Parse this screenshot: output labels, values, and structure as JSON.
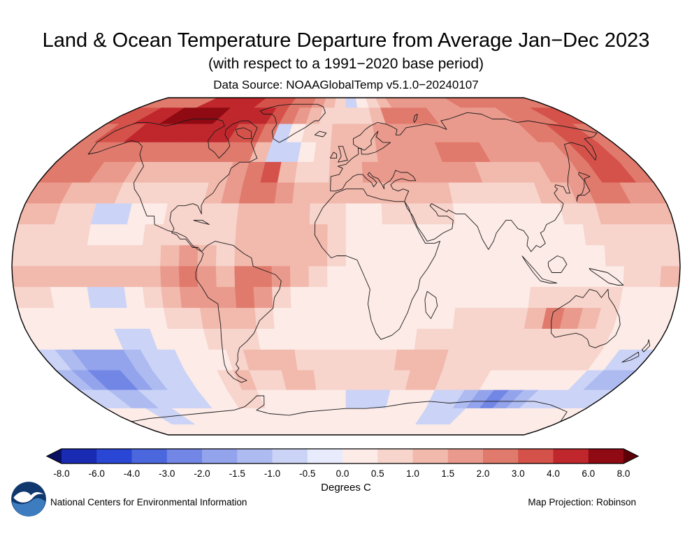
{
  "header": {
    "title": "Land & Ocean Temperature Departure from Average Jan−Dec 2023",
    "subtitle": "(with respect to a 1991−2020 base period)",
    "source": "Data Source: NOAAGlobalTemp v5.1.0−20240107"
  },
  "footer": {
    "org": "National Centers for Environmental Information",
    "projection": "Map Projection: Robinson",
    "logo": "noaa-logo"
  },
  "chart_data": {
    "type": "heatmap",
    "title": "Land & Ocean Temperature Departure from Average Jan−Dec 2023",
    "subtitle": "(with respect to a 1991−2020 base period)",
    "data_source": "NOAAGlobalTemp v5.1.0−20240107",
    "projection": "Robinson",
    "units": "Degrees C",
    "colorbar": {
      "label": "Degrees C",
      "ticks": [
        "-8.0",
        "-6.0",
        "-4.0",
        "-3.0",
        "-2.0",
        "-1.5",
        "-1.0",
        "-0.5",
        "0.0",
        "0.5",
        "1.0",
        "1.5",
        "2.0",
        "3.0",
        "4.0",
        "6.0",
        "8.0"
      ],
      "colors": [
        "#0a0f64",
        "#1a2bb3",
        "#2a46d4",
        "#4b67de",
        "#7286e6",
        "#93a3ec",
        "#aebbf1",
        "#cbd3f6",
        "#e8ebfb",
        "#fcebe7",
        "#f7d4cc",
        "#f2b9ad",
        "#ea9a8d",
        "#e07a6d",
        "#d5524a",
        "#c0272d",
        "#8f0a12",
        "#5f0008"
      ]
    },
    "grid": {
      "description": "Temperature anomaly (deg C) on a 10x10 degree grid, rows from 90N to 90S, columns from 180W to 180E",
      "lat_step": 10,
      "lon_step": 10,
      "lat_start": 90,
      "lon_start": -180,
      "anomaly": [
        [
          2.5,
          2.5,
          3,
          3,
          3,
          5,
          5,
          5,
          5,
          5,
          4,
          4,
          3.5,
          3,
          2.5,
          2,
          1.5,
          1,
          -0.5,
          0.5,
          1,
          1.5,
          2,
          2,
          2,
          2,
          2,
          2,
          2.5,
          2.5,
          2.5,
          2.5,
          2.5,
          2.5,
          2.5,
          2.5
        ],
        [
          3.5,
          4,
          4.5,
          5,
          6.5,
          6.5,
          6.5,
          6.5,
          5,
          5,
          5,
          4.5,
          3.5,
          2.5,
          2,
          1.5,
          1,
          1,
          1,
          1,
          1.5,
          2.5,
          2.5,
          2.5,
          2.5,
          2,
          2,
          2,
          2,
          2,
          2,
          2.5,
          3,
          3,
          3.5,
          3.5
        ],
        [
          3,
          3.5,
          4,
          4.5,
          5,
          5,
          5,
          5,
          4.5,
          4.5,
          4,
          4,
          2.5,
          -0.5,
          0.5,
          1,
          1,
          1.5,
          1.5,
          1.5,
          2,
          2,
          2,
          2,
          2,
          2,
          2,
          2,
          2,
          2,
          2,
          2.5,
          3,
          3.5,
          3.5,
          3
        ],
        [
          2.5,
          3,
          3,
          3,
          3,
          2.5,
          2.5,
          2.5,
          3,
          3,
          3,
          3,
          1.5,
          -0.5,
          -0.5,
          0.5,
          1,
          1.5,
          1.5,
          1.5,
          2,
          2,
          2,
          2,
          2.5,
          2.5,
          2.5,
          2,
          2,
          2,
          2,
          2,
          2.5,
          3.5,
          3.5,
          3
        ],
        [
          2.5,
          2.5,
          2.5,
          2,
          2,
          1.5,
          1.5,
          1.5,
          1.5,
          1.5,
          1.5,
          2,
          3,
          3.5,
          1.5,
          1,
          1,
          1.5,
          1.5,
          2,
          2,
          2,
          2,
          2,
          2,
          2,
          1.5,
          1.5,
          1.5,
          1.5,
          2,
          2,
          2.5,
          3.5,
          3.5,
          3
        ],
        [
          2,
          2,
          1.5,
          1.5,
          1.5,
          1,
          1,
          1,
          1,
          1,
          1.5,
          2,
          3,
          3,
          2,
          1.5,
          1.5,
          1.5,
          1.5,
          1.5,
          1.5,
          1.5,
          1.5,
          1.5,
          1,
          1,
          1,
          1,
          1,
          1.5,
          1.5,
          2,
          2.5,
          2.5,
          2,
          2
        ],
        [
          1.5,
          1.5,
          1,
          1,
          -0.5,
          -0.5,
          0.5,
          0.5,
          1,
          1,
          1,
          1,
          1.5,
          1.5,
          1.5,
          1.5,
          1,
          1,
          0.5,
          0.5,
          1,
          1,
          1,
          1,
          0.5,
          0.5,
          0.5,
          0.5,
          0.5,
          0.5,
          1,
          1,
          1.5,
          1.5,
          1.5,
          1.5
        ],
        [
          1,
          1,
          1,
          1,
          0.5,
          0.5,
          0.5,
          1,
          1,
          1,
          1,
          1,
          1.5,
          1.5,
          1.5,
          1.5,
          1.5,
          1,
          0.5,
          0.5,
          0.5,
          0.5,
          0.5,
          0.5,
          0.5,
          0.5,
          0.5,
          0.5,
          0.5,
          0.5,
          0.5,
          1,
          1,
          1,
          1,
          1
        ],
        [
          1,
          1,
          1,
          1,
          1,
          1,
          1,
          1,
          1.5,
          2,
          1.5,
          1,
          1.5,
          1.5,
          1.5,
          1.5,
          1.5,
          1,
          0.5,
          0.5,
          0.5,
          0.5,
          0.5,
          0.5,
          0.5,
          0.5,
          0.5,
          0.5,
          0.5,
          0.5,
          0.5,
          0.5,
          1,
          1,
          1,
          1
        ],
        [
          1.5,
          1.5,
          1.5,
          1.5,
          1.5,
          1.5,
          1.5,
          1.5,
          2,
          2.5,
          2,
          1.5,
          2.5,
          2.5,
          2,
          1.5,
          1,
          0.5,
          0.5,
          0.5,
          0.5,
          0.5,
          0.5,
          0.5,
          0.5,
          0.5,
          0.5,
          0.5,
          0.5,
          0.5,
          0.5,
          0.5,
          0.5,
          1,
          1,
          1.5
        ],
        [
          1,
          1,
          0.5,
          0.5,
          -0.5,
          -0.5,
          0.5,
          1,
          1.5,
          2,
          2,
          2,
          2.5,
          2,
          1,
          0.5,
          0.5,
          0.5,
          0.5,
          0.5,
          0.5,
          0.5,
          0.5,
          0.5,
          0.5,
          0.5,
          0.5,
          0.5,
          1,
          1,
          1,
          1,
          1,
          0.5,
          0.5,
          0.5
        ],
        [
          0.5,
          0.5,
          0.5,
          0.5,
          0.5,
          0.5,
          0.5,
          0.5,
          1,
          1,
          1.5,
          1.5,
          1.5,
          1,
          0.5,
          0.5,
          0.5,
          0.5,
          0.5,
          0.5,
          0.5,
          0.5,
          0.5,
          0.5,
          1,
          1,
          1,
          1,
          1.5,
          2.5,
          2,
          1.5,
          1,
          0.5,
          0.5,
          0.5
        ],
        [
          0.5,
          0.5,
          0.5,
          0.5,
          0.5,
          -0.5,
          -0.5,
          0.5,
          0.5,
          0.5,
          1,
          1,
          1,
          0.5,
          0.5,
          0.5,
          0.5,
          0.5,
          0.5,
          0.5,
          0.5,
          0.5,
          1,
          1,
          1,
          1,
          1,
          1,
          1,
          1,
          1,
          1,
          1,
          0.5,
          0.5,
          0.5
        ],
        [
          -0.5,
          -1,
          -1.5,
          -1.5,
          -1.5,
          -1,
          -0.5,
          -0.5,
          0.5,
          0.5,
          0.5,
          1,
          1.5,
          1.5,
          1.5,
          1,
          1,
          1,
          1,
          1,
          1,
          1.5,
          1.5,
          1.5,
          1,
          1,
          1,
          1,
          1,
          1,
          1,
          1,
          1,
          0.5,
          -0.5,
          -0.5
        ],
        [
          -1,
          -1.5,
          -2,
          -2,
          -1.5,
          -1,
          -0.5,
          -0.5,
          0.5,
          0.5,
          1,
          1.5,
          1,
          1,
          1.5,
          1.5,
          1,
          1,
          1,
          1,
          1,
          1,
          1.5,
          1.5,
          1,
          1,
          1,
          0.5,
          0.5,
          0.5,
          0.5,
          0.5,
          0.5,
          -0.5,
          -1,
          -1
        ],
        [
          -0.5,
          -0.5,
          -1,
          -1,
          -0.5,
          -0.5,
          -0.5,
          -0.5,
          0.5,
          0.5,
          1,
          1,
          0.5,
          0.5,
          0.5,
          0.5,
          0.5,
          0.5,
          -0.5,
          -0.5,
          -0.5,
          0.5,
          0.5,
          0.5,
          -0.5,
          -0.5,
          -1,
          -1.5,
          -2,
          -1.5,
          -1,
          -0.5,
          -0.5,
          -0.5,
          -0.5,
          -0.5
        ],
        [
          0.5,
          0.5,
          0.5,
          -0.5,
          -0.5,
          0.5,
          0.5,
          0.5,
          0.5,
          0.5,
          0.5,
          0.5,
          0.5,
          0.5,
          0.5,
          0.5,
          0.5,
          0.5,
          0.5,
          0.5,
          0.5,
          0.5,
          0.5,
          0.5,
          -0.5,
          -0.5,
          -0.5,
          0.5,
          0.5,
          0.5,
          0.5,
          0.5,
          0.5,
          0.5,
          0.5,
          0.5
        ],
        [
          0.5,
          0.5,
          0.5,
          0.5,
          0.5,
          0.5,
          0.5,
          0.5,
          0.5,
          0.5,
          0.5,
          0.5,
          0.5,
          0.5,
          0.5,
          0.5,
          0.5,
          0.5,
          0.5,
          0.5,
          0.5,
          0.5,
          0.5,
          0.5,
          0.5,
          0.5,
          0.5,
          0.5,
          0.5,
          0.5,
          0.5,
          0.5,
          0.5,
          0.5,
          0.5,
          0.5
        ]
      ]
    }
  }
}
